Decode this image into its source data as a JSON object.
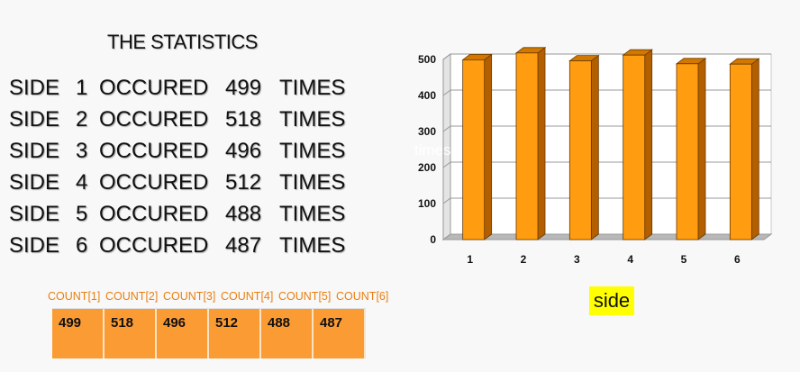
{
  "title": "THE STATISTICS",
  "stats": [
    {
      "side_word": "SIDE",
      "side": "1",
      "occured": "OCCURED",
      "value": "499",
      "times": "TIMES"
    },
    {
      "side_word": "SIDE",
      "side": "2",
      "occured": "OCCURED",
      "value": "518",
      "times": "TIMES"
    },
    {
      "side_word": "SIDE",
      "side": "3",
      "occured": "OCCURED",
      "value": "496",
      "times": "TIMES"
    },
    {
      "side_word": "SIDE",
      "side": "4",
      "occured": "OCCURED",
      "value": "512",
      "times": "TIMES"
    },
    {
      "side_word": "SIDE",
      "side": "5",
      "occured": "OCCURED",
      "value": "488",
      "times": "TIMES"
    },
    {
      "side_word": "SIDE",
      "side": "6",
      "occured": "OCCURED",
      "value": "487",
      "times": "TIMES"
    }
  ],
  "counts": {
    "headers": [
      "COUNT[1]",
      "COUNT[2]",
      "COUNT[3]",
      "COUNT[4]",
      "COUNT[5]",
      "COUNT[6]"
    ],
    "values": [
      "499",
      "518",
      "496",
      "512",
      "488",
      "487"
    ]
  },
  "chart_data": {
    "type": "bar",
    "categories": [
      "1",
      "2",
      "3",
      "4",
      "5",
      "6"
    ],
    "values": [
      499,
      518,
      496,
      512,
      488,
      487
    ],
    "xlabel": "side",
    "ylabel": "times",
    "ylim": [
      0,
      500
    ],
    "yticks": [
      "0",
      "100",
      "200",
      "300",
      "400",
      "500"
    ],
    "bar_color": "#ff9c0f",
    "grid": true
  }
}
